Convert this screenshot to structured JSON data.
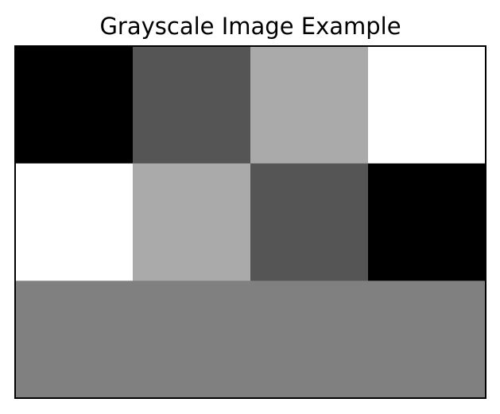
{
  "chart_data": {
    "type": "heatmap",
    "title": "Grayscale Image Example",
    "xlabel": "",
    "ylabel": "",
    "colormap": "gray",
    "value_range": [
      0,
      255
    ],
    "axes_ticks": false,
    "grid": false,
    "rows": [
      [
        0,
        85,
        170,
        255
      ],
      [
        255,
        170,
        85,
        0
      ],
      [
        128,
        128,
        128,
        128
      ]
    ]
  }
}
